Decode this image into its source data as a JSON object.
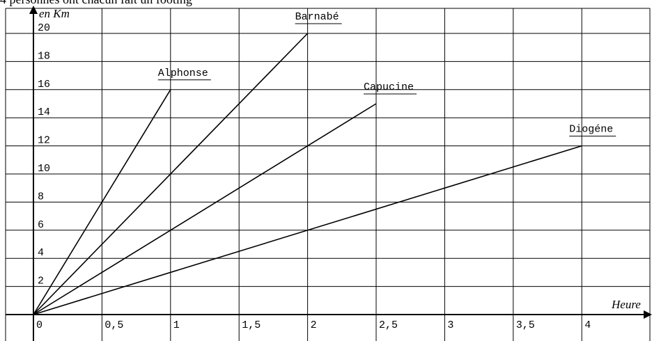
{
  "chart_data": {
    "type": "line",
    "title": "4 personnes ont chacun fait un footing",
    "x_label": "Heure",
    "y_label": "en Km",
    "xlim": [
      0,
      4.5
    ],
    "ylim": [
      0,
      20
    ],
    "xticks": [
      0,
      {
        "value": 0.5,
        "label": "0,5"
      },
      1,
      {
        "value": 1.5,
        "label": "1,5"
      },
      2,
      {
        "value": 2.5,
        "label": "2,5"
      },
      3,
      {
        "value": 3.5,
        "label": "3,5"
      },
      4
    ],
    "yticks": [
      2,
      4,
      6,
      8,
      10,
      12,
      14,
      16,
      18,
      20
    ],
    "grid": true,
    "series": [
      {
        "name": "Alphonse",
        "color": "#000000",
        "x": [
          0,
          1
        ],
        "values": [
          0,
          16
        ]
      },
      {
        "name": "Barnabé",
        "color": "#000000",
        "x": [
          0,
          2
        ],
        "values": [
          0,
          20
        ]
      },
      {
        "name": "Capucine",
        "color": "#000000",
        "x": [
          0,
          2.5
        ],
        "values": [
          0,
          15
        ]
      },
      {
        "name": "Diogéne",
        "color": "#000000",
        "x": [
          0,
          4
        ],
        "values": [
          0,
          12
        ]
      }
    ]
  }
}
